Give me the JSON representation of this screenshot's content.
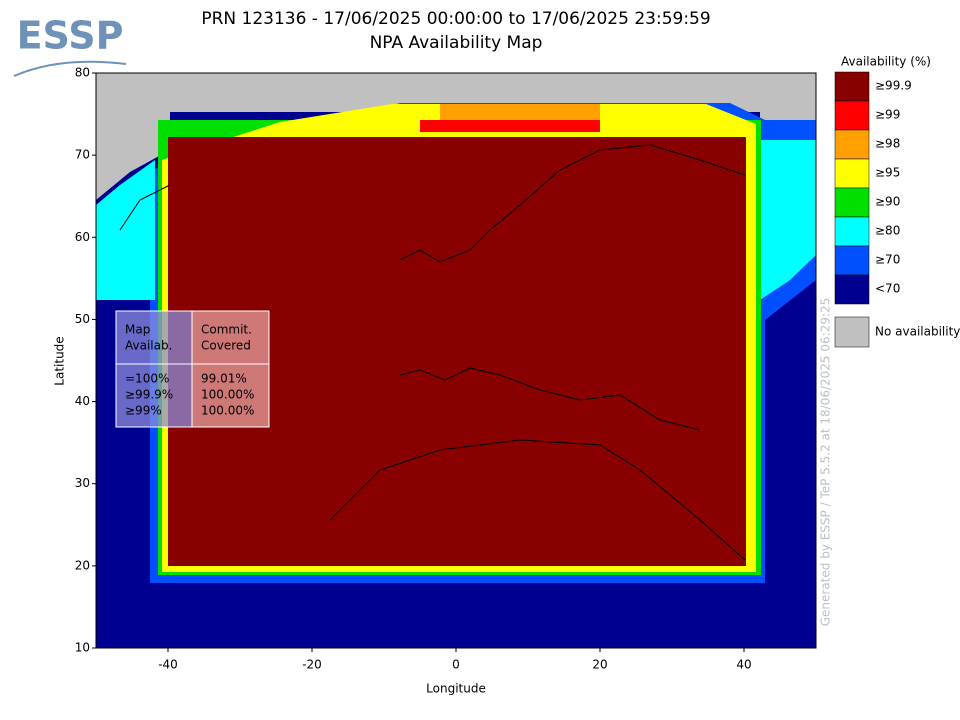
{
  "chart_data": {
    "type": "coverage-map",
    "logo": "ESSP",
    "title": "PRN 123136 - 17/06/2025 00:00:00 to 17/06/2025 23:59:59",
    "subtitle": "NPA Availability Map",
    "x_label": "Longitude",
    "y_label": "Latitude",
    "xlim": [
      -50,
      50
    ],
    "ylim": [
      10,
      80
    ],
    "xticks": [
      -40,
      -20,
      0,
      20,
      40
    ],
    "yticks": [
      10,
      20,
      30,
      40,
      50,
      60,
      70,
      80
    ],
    "legend": {
      "title": "Availability (%)",
      "items": [
        {
          "label": "≥99.9",
          "color": "#880000"
        },
        {
          "label": "≥99",
          "color": "#ff0000"
        },
        {
          "label": "≥98",
          "color": "#ffa000"
        },
        {
          "label": "≥95",
          "color": "#ffff00"
        },
        {
          "label": "≥90",
          "color": "#00e000"
        },
        {
          "label": "≥80",
          "color": "#00ffff"
        },
        {
          "label": "≥70",
          "color": "#0050ff"
        },
        {
          "label": "<70",
          "color": "#000090"
        }
      ],
      "no_data": {
        "label": "No availability",
        "color": "#c0c0c0"
      }
    },
    "table": {
      "columns": [
        {
          "header": [
            "Map",
            "Availab."
          ],
          "values": [
            "=100%",
            "≥99.9%",
            "≥99%"
          ]
        },
        {
          "header": [
            "Commit.",
            "Covered"
          ],
          "values": [
            "99.01%",
            "100.00%",
            "100.00%"
          ]
        }
      ]
    },
    "credit": "Generated by ESSP / TeP 5.5.2 at 18/06/2025 06:29:25"
  }
}
